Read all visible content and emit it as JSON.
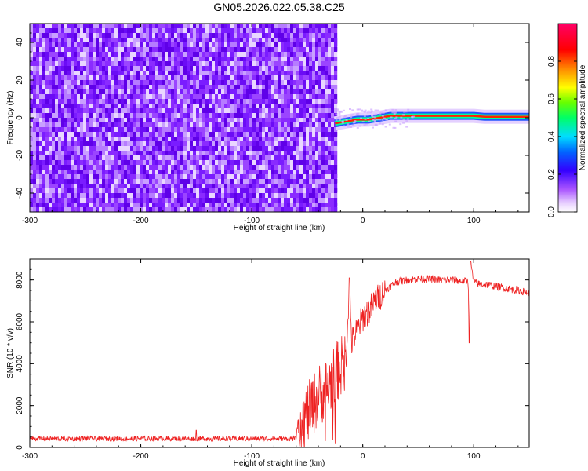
{
  "figure_title": "GN05.2026.022.05.38.C25",
  "chart_data": [
    {
      "type": "heatmap",
      "xlabel": "Height of straight line (km)",
      "ylabel": "Frequency (Hz)",
      "xlim": [
        -300,
        150
      ],
      "ylim": [
        -50,
        50
      ],
      "xticks": [
        -300,
        -200,
        -100,
        0,
        100
      ],
      "yticks": [
        -40,
        -20,
        0,
        20,
        40
      ],
      "noise_region_x": [
        -300,
        -25
      ],
      "signal_region_x": [
        -25,
        150
      ],
      "signal_frequency_track": [
        {
          "x": -25,
          "y": -3
        },
        {
          "x": -15,
          "y": -2
        },
        {
          "x": -5,
          "y": -1
        },
        {
          "x": 5,
          "y": -1
        },
        {
          "x": 15,
          "y": 0
        },
        {
          "x": 25,
          "y": 1
        },
        {
          "x": 40,
          "y": 1
        },
        {
          "x": 60,
          "y": 1
        },
        {
          "x": 80,
          "y": 1
        },
        {
          "x": 100,
          "y": 1
        },
        {
          "x": 110,
          "y": 0.5
        },
        {
          "x": 150,
          "y": 0.5
        }
      ],
      "grid": false,
      "colormap": [
        "#ffffff",
        "#d9b3ff",
        "#8000ff",
        "#0000ff",
        "#00ffff",
        "#00ff00",
        "#ffff00",
        "#ff8000",
        "#ff0000",
        "#ff0066"
      ]
    },
    {
      "type": "line",
      "xlabel": "Height of straight line (km)",
      "ylabel": "SNR (10 * v/v)",
      "xlim": [
        -300,
        150
      ],
      "ylim": [
        0,
        9000
      ],
      "xticks": [
        -300,
        -200,
        -100,
        0,
        100
      ],
      "yticks": [
        0,
        2000,
        4000,
        6000,
        8000
      ],
      "grid": false,
      "color": "#ee2222",
      "series": [
        {
          "x": [
            -300,
            -250,
            -200,
            -150,
            -100,
            -70,
            -60,
            -58,
            -55,
            -50,
            -45,
            -40,
            -35,
            -30,
            -25,
            -20,
            -15,
            -12,
            -10,
            -5,
            0,
            5,
            10,
            15,
            20,
            25,
            30,
            40,
            50,
            60,
            70,
            80,
            90,
            95,
            96,
            97,
            100,
            105,
            110,
            120,
            130,
            140,
            150
          ],
          "values": [
            420,
            420,
            420,
            420,
            420,
            420,
            420,
            1500,
            1200,
            1600,
            2000,
            2500,
            2700,
            3000,
            3500,
            3800,
            4200,
            8100,
            5000,
            5600,
            6200,
            6500,
            6900,
            7200,
            7500,
            7700,
            7900,
            8000,
            8050,
            8050,
            8000,
            8000,
            7950,
            7950,
            5000,
            8900,
            7900,
            7800,
            7800,
            7700,
            7600,
            7500,
            7400
          ]
        }
      ]
    }
  ],
  "colorbar": {
    "label": "Normalized spectral amplitude",
    "ticks": [
      "0.0",
      "0.2",
      "0.4",
      "0.6",
      "0.8"
    ],
    "range": [
      0,
      1
    ]
  }
}
